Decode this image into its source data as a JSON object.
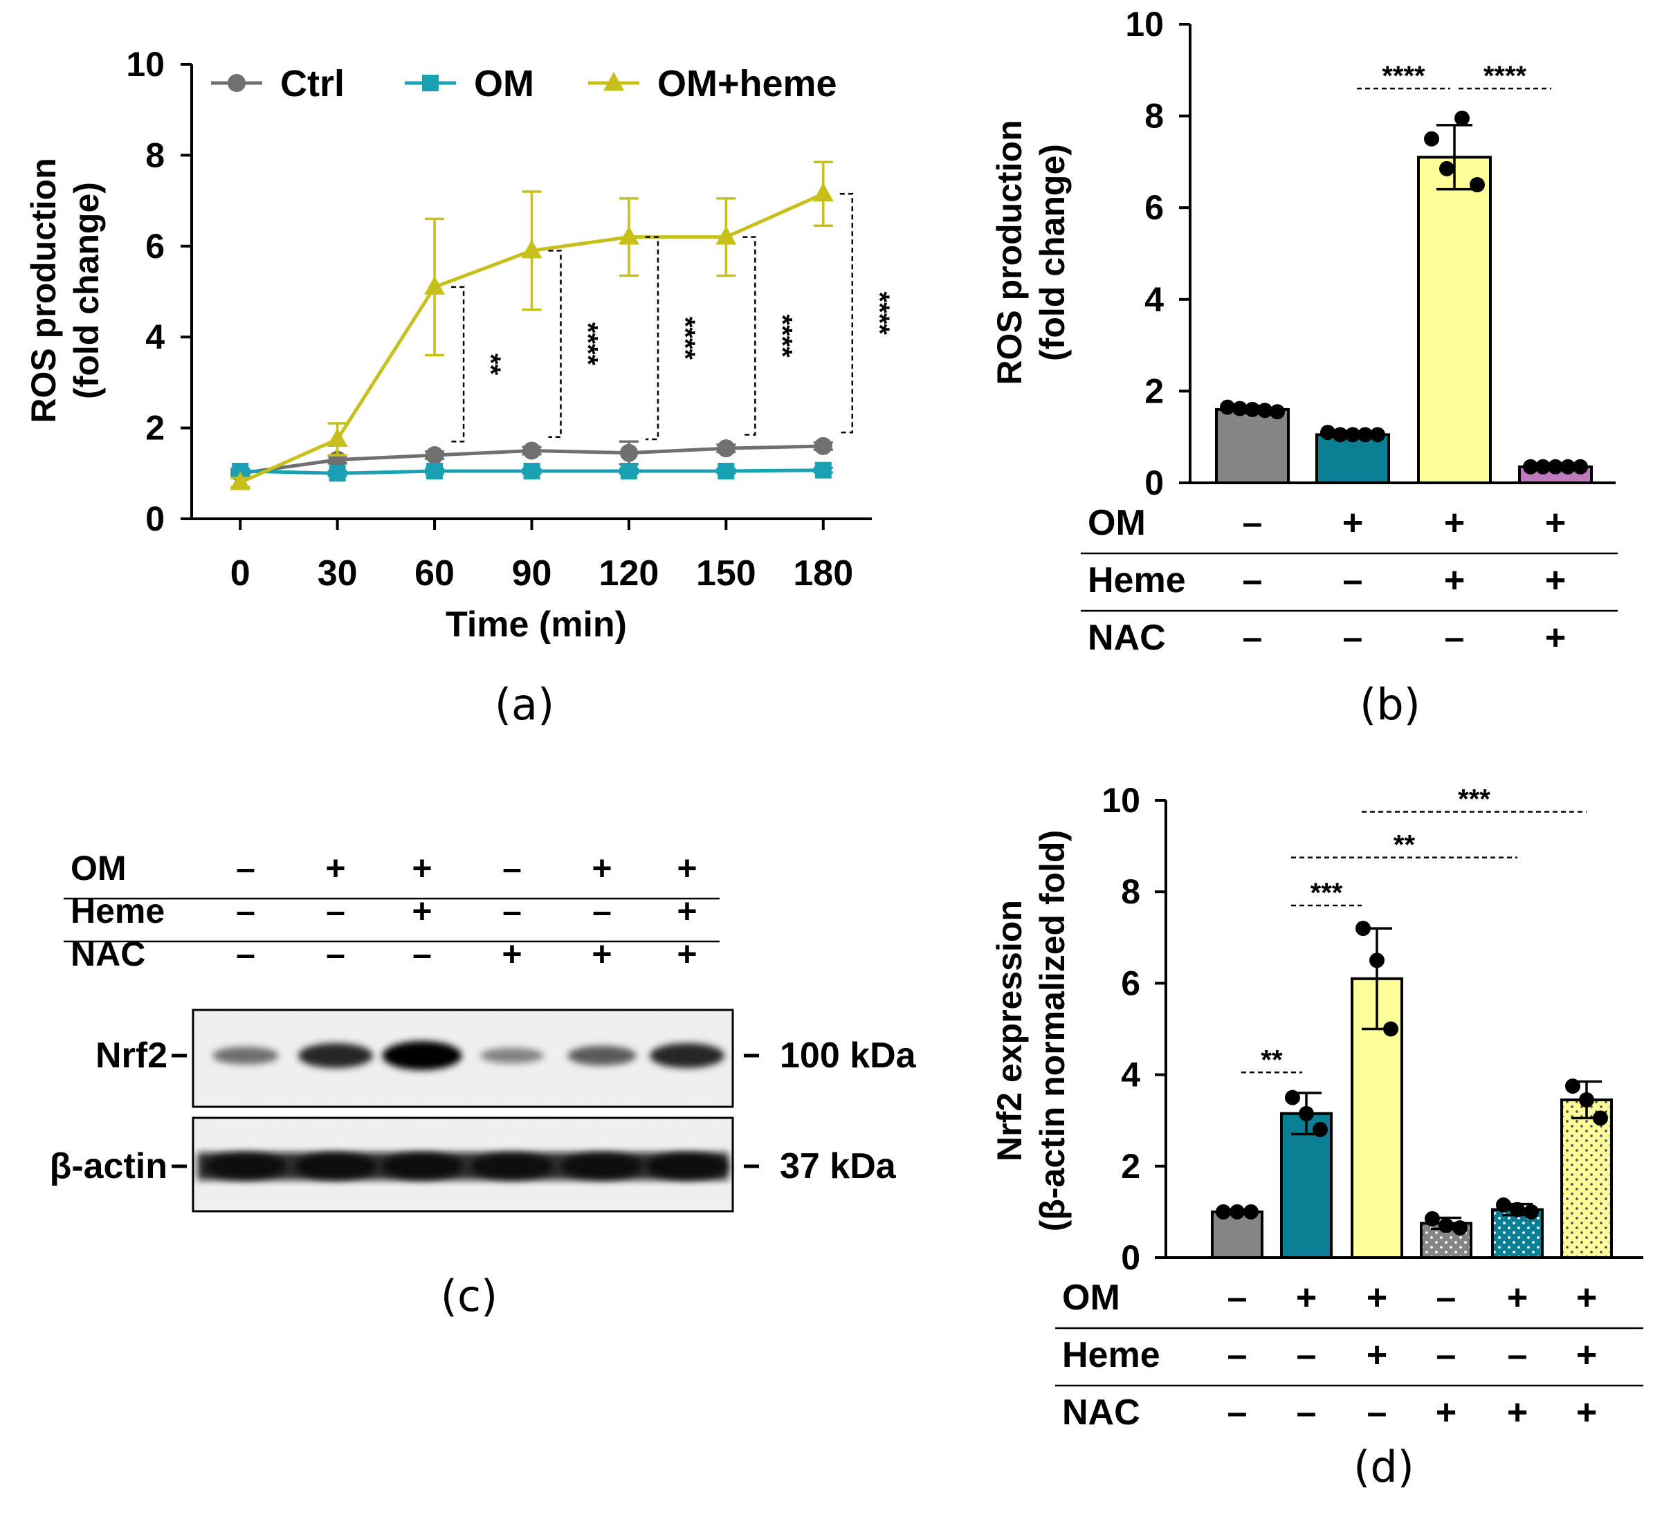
{
  "colors": {
    "ctrl": "#707070",
    "om": "#1aa1b1",
    "heme": "#c7c01c",
    "gray_bar": "#858585",
    "teal_bar": "#0b7f94",
    "yellow_bar": "#ffff99",
    "purple_bar": "#c07ac0"
  },
  "labels": {
    "a": "(a)",
    "b": "(b)",
    "c": "(c)",
    "d": "(d)"
  },
  "chart_data": [
    {
      "panel": "a",
      "type": "line",
      "title": "",
      "xlabel": "Time (min)",
      "ylabel": [
        "ROS production",
        "(fold change)"
      ],
      "x": [
        0,
        30,
        60,
        90,
        120,
        150,
        180
      ],
      "xlim": [
        -15,
        195
      ],
      "ylim": [
        0,
        10
      ],
      "yticks": [
        0,
        2,
        4,
        6,
        8,
        10
      ],
      "legend": "top",
      "series": [
        {
          "name": "Ctrl",
          "marker": "circle",
          "color": "#707070",
          "values": [
            1.0,
            1.3,
            1.4,
            1.5,
            1.45,
            1.55,
            1.6
          ],
          "errors": [
            0.05,
            0.08,
            0.08,
            0.08,
            0.25,
            0.08,
            0.08
          ]
        },
        {
          "name": "OM",
          "marker": "square",
          "color": "#1aa1b1",
          "values": [
            1.05,
            1.0,
            1.05,
            1.05,
            1.05,
            1.05,
            1.07
          ],
          "errors": [
            0.05,
            0.05,
            0.05,
            0.05,
            0.05,
            0.05,
            0.05
          ]
        },
        {
          "name": "OM+heme",
          "marker": "triangle",
          "color": "#c7c01c",
          "values": [
            0.8,
            1.75,
            5.1,
            5.9,
            6.2,
            6.2,
            7.15
          ],
          "errors": [
            0.1,
            0.35,
            1.5,
            1.3,
            0.85,
            0.85,
            0.7
          ]
        }
      ],
      "significance": [
        {
          "x": 60,
          "stars": "**"
        },
        {
          "x": 90,
          "stars": "****"
        },
        {
          "x": 120,
          "stars": "****"
        },
        {
          "x": 150,
          "stars": "****"
        },
        {
          "x": 180,
          "stars": "****"
        }
      ]
    },
    {
      "panel": "b",
      "type": "bar",
      "xlabel": "",
      "ylabel": [
        "ROS production",
        "(fold change)"
      ],
      "ylim": [
        0,
        10
      ],
      "yticks": [
        0,
        2,
        4,
        6,
        8,
        10
      ],
      "bars": [
        {
          "value": 1.6,
          "error": 0.08,
          "color": "#858585",
          "points": [
            1.65,
            1.62,
            1.6,
            1.58,
            1.55
          ]
        },
        {
          "value": 1.05,
          "error": 0.07,
          "color": "#0b7f94",
          "points": [
            1.1,
            1.05,
            1.05,
            1.05,
            1.05
          ]
        },
        {
          "value": 7.1,
          "error": 0.7,
          "color": "#ffff99",
          "points": [
            7.5,
            6.85,
            7.95,
            6.5
          ]
        },
        {
          "value": 0.35,
          "error": 0.05,
          "color": "#c07ac0",
          "points": [
            0.35,
            0.35,
            0.35,
            0.35,
            0.35
          ]
        }
      ],
      "conditions": [
        {
          "name": "OM",
          "values": [
            "–",
            "+",
            "+",
            "+"
          ]
        },
        {
          "name": "Heme",
          "values": [
            "–",
            "–",
            "+",
            "+"
          ]
        },
        {
          "name": "NAC",
          "values": [
            "–",
            "–",
            "–",
            "+"
          ]
        }
      ],
      "significance": [
        {
          "from": 1,
          "to": 2,
          "stars": "****"
        },
        {
          "from": 2,
          "to": 3,
          "stars": "****"
        }
      ]
    },
    {
      "panel": "d",
      "type": "bar",
      "xlabel": "",
      "ylabel": [
        "Nrf2 expression",
        "(β-actin normalized fold)"
      ],
      "ylim": [
        0,
        10
      ],
      "yticks": [
        0,
        2,
        4,
        6,
        8,
        10
      ],
      "bars": [
        {
          "value": 1.0,
          "error": 0.05,
          "color": "#858585",
          "dotted": false,
          "points": [
            1.0,
            1.0,
            1.0
          ]
        },
        {
          "value": 3.15,
          "error": 0.45,
          "color": "#0b7f94",
          "dotted": false,
          "points": [
            3.5,
            3.15,
            2.8
          ]
        },
        {
          "value": 6.1,
          "error": 1.1,
          "color": "#ffff99",
          "dotted": false,
          "points": [
            7.2,
            6.5,
            5.0
          ]
        },
        {
          "value": 0.75,
          "error": 0.12,
          "color": "#858585",
          "dotted": true,
          "points": [
            0.85,
            0.7,
            0.65
          ]
        },
        {
          "value": 1.05,
          "error": 0.12,
          "color": "#0b7f94",
          "dotted": true,
          "points": [
            1.15,
            1.05,
            1.0
          ]
        },
        {
          "value": 3.45,
          "error": 0.4,
          "color": "#ffff99",
          "dotted": true,
          "points": [
            3.75,
            3.45,
            3.05
          ]
        }
      ],
      "conditions": [
        {
          "name": "OM",
          "values": [
            "–",
            "+",
            "+",
            "–",
            "+",
            "+"
          ]
        },
        {
          "name": "Heme",
          "values": [
            "–",
            "–",
            "+",
            "–",
            "–",
            "+"
          ]
        },
        {
          "name": "NAC",
          "values": [
            "–",
            "–",
            "–",
            "+",
            "+",
            "+"
          ]
        }
      ],
      "significance": [
        {
          "from": 0,
          "to": 1,
          "stars": "**",
          "level": 4.05
        },
        {
          "from": 1,
          "to": 2,
          "stars": "***",
          "level": 7.7
        },
        {
          "from": 1,
          "to": 4,
          "stars": "**",
          "level": 8.75
        },
        {
          "from": 2,
          "to": 5,
          "stars": "***",
          "level": 9.75
        }
      ]
    }
  ],
  "blot": {
    "conditions": [
      {
        "name": "OM",
        "values": [
          "–",
          "+",
          "+",
          "–",
          "+",
          "+"
        ]
      },
      {
        "name": "Heme",
        "values": [
          "–",
          "–",
          "+",
          "–",
          "–",
          "+"
        ]
      },
      {
        "name": "NAC",
        "values": [
          "–",
          "–",
          "–",
          "+",
          "+",
          "+"
        ]
      }
    ],
    "rows": [
      {
        "protein": "Nrf2",
        "size": "100 kDa",
        "intensities": [
          0.45,
          0.8,
          1.0,
          0.35,
          0.55,
          0.8
        ]
      },
      {
        "protein": "β-actin",
        "size": "37 kDa",
        "intensities": [
          0.9,
          0.95,
          0.92,
          0.9,
          0.9,
          0.93
        ]
      }
    ]
  }
}
